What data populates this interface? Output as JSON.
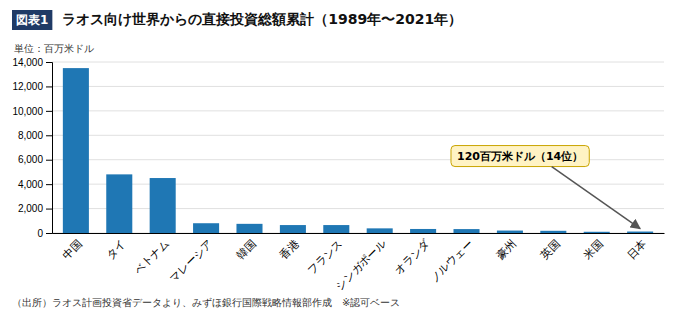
{
  "chart_data": {
    "type": "bar",
    "title": "ラオス向け世界からの直接投資総額累計（1989年〜2021年）",
    "title_label": "図表1",
    "ylabel": "単位：百万米ドル",
    "categories": [
      "中国",
      "タイ",
      "ベトナム",
      "マレーシア",
      "韓国",
      "香港",
      "フランス",
      "シンガポール",
      "オランダ",
      "ノルウェー",
      "豪州",
      "英国",
      "米国",
      "日本"
    ],
    "values": [
      13500,
      4800,
      4500,
      800,
      750,
      650,
      650,
      380,
      330,
      320,
      200,
      180,
      100,
      120
    ],
    "ylim": [
      0,
      14000
    ],
    "yticks": [
      0,
      {
        "value": 2000,
        "label": "2,000"
      },
      {
        "value": 4000,
        "label": "4,000"
      },
      {
        "value": 6000,
        "label": "6,000"
      },
      {
        "value": 8000,
        "label": "8,000"
      },
      {
        "value": 10000,
        "label": "10,000"
      },
      {
        "value": 12000,
        "label": "12,000"
      },
      {
        "value": 14000,
        "label": "14,000"
      }
    ],
    "grid": true,
    "annotations": [
      {
        "text": "120百万米ドル（14位）",
        "category": "日本"
      }
    ],
    "footer": "（出所）ラオス計画投資省データより、みずほ銀行国際戦略情報部作成　※認可ベース"
  }
}
